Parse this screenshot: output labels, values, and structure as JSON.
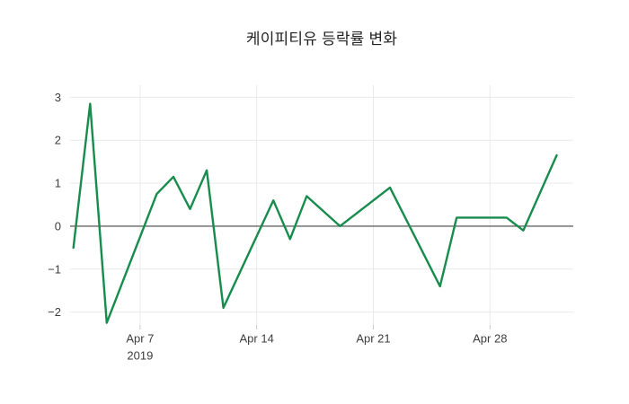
{
  "chart_data": {
    "type": "line",
    "title": "케이피티유 등락률 변화",
    "xlabel": "",
    "ylabel": "",
    "legend": false,
    "grid": true,
    "series": [
      {
        "name": "케이피티유 등락률",
        "x": [
          "2019-04-03",
          "2019-04-04",
          "2019-04-05",
          "2019-04-08",
          "2019-04-09",
          "2019-04-10",
          "2019-04-11",
          "2019-04-12",
          "2019-04-15",
          "2019-04-16",
          "2019-04-17",
          "2019-04-19",
          "2019-04-22",
          "2019-04-25",
          "2019-04-26",
          "2019-04-29",
          "2019-04-30",
          "2019-05-02"
        ],
        "y": [
          -0.5,
          2.85,
          -2.25,
          0.75,
          1.15,
          0.4,
          1.3,
          -1.9,
          0.6,
          -0.3,
          0.7,
          0.0,
          0.9,
          -1.4,
          0.2,
          0.2,
          -0.1,
          1.65
        ],
        "color": "#178C4D"
      }
    ],
    "x_axis": {
      "ticks": [
        {
          "date": "2019-04-07",
          "label": "Apr 7",
          "year_label": "2019"
        },
        {
          "date": "2019-04-14",
          "label": "Apr 14"
        },
        {
          "date": "2019-04-21",
          "label": "Apr 21"
        },
        {
          "date": "2019-04-28",
          "label": "Apr 28"
        }
      ],
      "range_days_from_apr1": [
        1.8,
        32.0
      ]
    },
    "y_axis": {
      "ticks": [
        {
          "value": 3,
          "label": "3"
        },
        {
          "value": 2,
          "label": "2"
        },
        {
          "value": 1,
          "label": "1"
        },
        {
          "value": 0,
          "label": "0"
        },
        {
          "value": -1,
          "label": "−1"
        },
        {
          "value": -2,
          "label": "−2"
        }
      ],
      "range": [
        -2.3,
        3.28
      ],
      "zeroline": true
    },
    "style": {
      "line_color": "#178C4D",
      "grid_color": "#e9e9e9",
      "zeroline_color": "#444444",
      "tick_color": "#c9c9c9",
      "label_color": "#3d3d3d",
      "title_color": "#222222",
      "background": "#ffffff"
    }
  }
}
